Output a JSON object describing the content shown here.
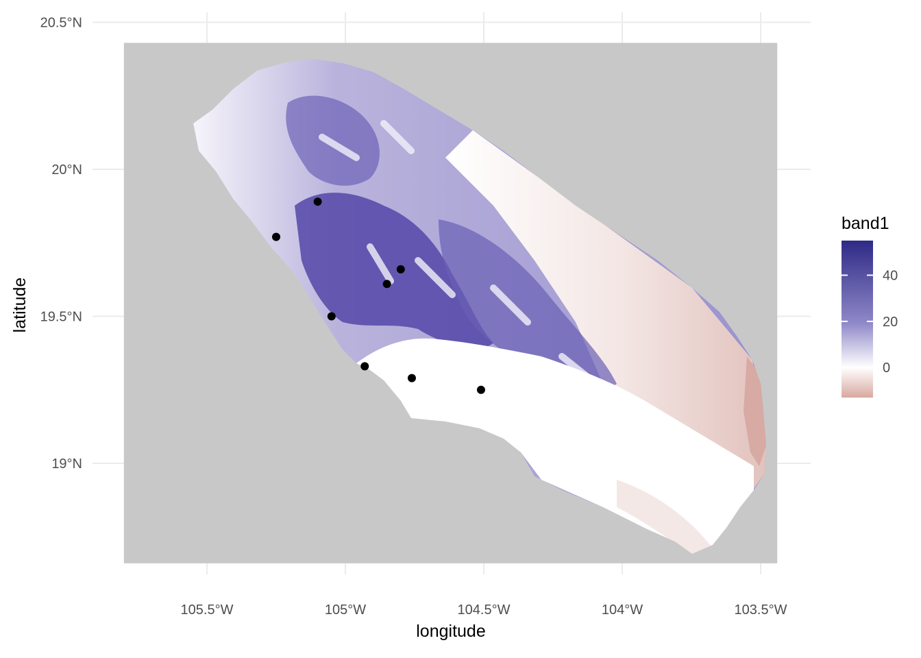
{
  "chart_data": {
    "type": "raster-map",
    "xlabel": "longitude",
    "ylabel": "latitude",
    "xlim": [
      -105.8,
      -103.45
    ],
    "ylim": [
      18.7,
      20.5
    ],
    "x_ticks": [
      {
        "value": -105.5,
        "label": "105.5°W"
      },
      {
        "value": -105.0,
        "label": "105°W"
      },
      {
        "value": -104.5,
        "label": "104.5°W"
      },
      {
        "value": -104.0,
        "label": "104°W"
      },
      {
        "value": -103.5,
        "label": "103.5°W"
      }
    ],
    "y_ticks": [
      {
        "value": 19.0,
        "label": "19°N"
      },
      {
        "value": 19.5,
        "label": "19.5°N"
      },
      {
        "value": 20.0,
        "label": "20°N"
      },
      {
        "value": 20.5,
        "label": "20.5°N"
      }
    ],
    "raster_extent": {
      "lon": [
        -105.8,
        -103.44
      ],
      "lat": [
        18.66,
        20.43
      ]
    },
    "na_color": "#c8c8c8",
    "grid": true,
    "legend": {
      "title": "band1",
      "position": "right",
      "range": [
        -13,
        55
      ],
      "breaks": [
        {
          "value": 40,
          "label": "40"
        },
        {
          "value": 20,
          "label": "20"
        },
        {
          "value": 0,
          "label": "0"
        }
      ],
      "colors": {
        "low": "#d8a8a0",
        "mid": "#ffffff",
        "high": "#2e2a86"
      }
    },
    "points": [
      {
        "lon": -105.1,
        "lat": 19.89
      },
      {
        "lon": -105.25,
        "lat": 19.77
      },
      {
        "lon": -104.8,
        "lat": 19.66
      },
      {
        "lon": -104.85,
        "lat": 19.61
      },
      {
        "lon": -105.05,
        "lat": 19.5
      },
      {
        "lon": -104.93,
        "lat": 19.33
      },
      {
        "lon": -104.76,
        "lat": 19.29
      },
      {
        "lon": -104.51,
        "lat": 19.25
      }
    ],
    "point_color": "#000000"
  }
}
